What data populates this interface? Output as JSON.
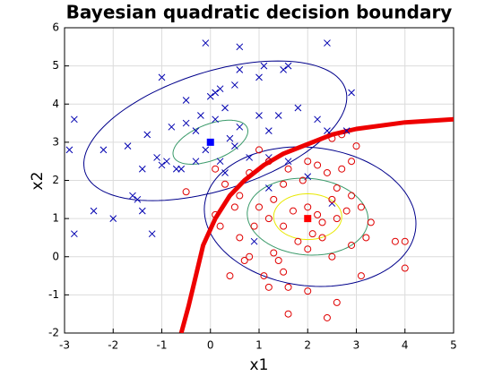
{
  "chart_data": {
    "type": "scatter",
    "title": "Bayesian quadratic decision boundary",
    "xlabel": "x1",
    "ylabel": "x2",
    "xlim": [
      -3,
      5
    ],
    "ylim": [
      -2,
      6
    ],
    "xticks": [
      -3,
      -2,
      -1,
      0,
      1,
      2,
      3,
      4,
      5
    ],
    "yticks": [
      -2,
      -1,
      0,
      1,
      2,
      3,
      4,
      5,
      6
    ],
    "grid": true,
    "series": [
      {
        "marker": "x",
        "color": "#0000b0",
        "x": [
          -2.8,
          -2.9,
          -2.8,
          -2.4,
          -2,
          -2.2,
          -1.7,
          -1.6,
          -1.5,
          -1.4,
          -1.2,
          -1.3,
          -1.1,
          -1,
          -0.9,
          -0.7,
          -0.6,
          -1,
          -0.5,
          -0.3,
          -0.2,
          0,
          0.1,
          0.2,
          0.3,
          0.1,
          -0.1,
          0.2,
          0.5,
          0.6,
          0.4,
          -0.1,
          0.6,
          0.5,
          0.6,
          1,
          1.1,
          1.5,
          1.6,
          1,
          1.2,
          1.4,
          1.2,
          0.8,
          1.8,
          2.2,
          2.4,
          2.4,
          2.8,
          2.9,
          2.5,
          1.2,
          0.9,
          1.6,
          2,
          -0.3,
          -0.8,
          -0.5,
          0.3,
          -1.4
        ],
        "y": [
          3.6,
          2.8,
          0.6,
          1.2,
          1,
          2.8,
          2.9,
          1.6,
          1.5,
          1.2,
          0.6,
          3.2,
          2.6,
          2.4,
          2.5,
          2.3,
          2.3,
          4.7,
          3.5,
          3.3,
          3.7,
          4.2,
          4.3,
          4.4,
          3.9,
          3.6,
          2.8,
          2.5,
          2.9,
          3.4,
          3.1,
          5.6,
          5.5,
          4.5,
          4.9,
          4.7,
          5,
          4.9,
          5,
          3.7,
          2.6,
          3.7,
          3.3,
          2.6,
          3.9,
          3.6,
          5.6,
          3.3,
          3.3,
          4.3,
          1.4,
          1.8,
          0.4,
          2.5,
          2.1,
          2.5,
          3.4,
          4.1,
          2.2,
          2.3
        ]
      },
      {
        "marker": "o",
        "color": "#e00000",
        "x": [
          1.6,
          2.4,
          2.6,
          2,
          1.6,
          1.2,
          1.1,
          0.4,
          1.5,
          3.1,
          4,
          0.8,
          1.3,
          2,
          2.5,
          2.9,
          3.2,
          3.8,
          4,
          0.1,
          0.5,
          0.6,
          0.9,
          1.2,
          1.5,
          1.8,
          2.1,
          2.3,
          2.6,
          2.8,
          2.9,
          3.1,
          2.5,
          2.6,
          2.4,
          2.7,
          2.9,
          3,
          2.7,
          2.5,
          2.2,
          2,
          1.9,
          1.6,
          1.2,
          1,
          0.8,
          0.6,
          0.3,
          -0.5,
          0.1,
          1.7,
          1.3,
          2,
          2.2,
          1,
          1.4,
          0.7,
          3.3,
          2.3,
          0.2,
          1.5
        ],
        "y": [
          -1.5,
          -1.6,
          -1.2,
          -0.9,
          -0.8,
          -0.8,
          -0.5,
          -0.5,
          -0.4,
          -0.5,
          -0.3,
          0,
          0.1,
          0.2,
          0,
          0.3,
          0.5,
          0.4,
          0.4,
          1.1,
          1.3,
          0.5,
          0.8,
          1,
          0.8,
          0.4,
          0.6,
          0.9,
          1,
          1.2,
          1.6,
          1.3,
          1.5,
          1.8,
          2.2,
          2.3,
          2.5,
          2.9,
          3.2,
          3.1,
          2.4,
          2.5,
          2,
          2.3,
          2.5,
          2.8,
          2.2,
          1.6,
          1.9,
          1.7,
          2.3,
          1.2,
          1.5,
          1.3,
          1.1,
          1.3,
          -0.1,
          -0.1,
          0.9,
          0.5,
          0.8,
          1.9
        ]
      },
      {
        "marker": "square",
        "color": "#0000ff",
        "x": [
          0
        ],
        "y": [
          3
        ]
      },
      {
        "marker": "square",
        "color": "#ff0000",
        "x": [
          2
        ],
        "y": [
          1
        ]
      }
    ],
    "ellipses": [
      {
        "color": "#00008b",
        "cx": 0.1,
        "cy": 3.3,
        "a": 2.9,
        "b": 1.5,
        "angle": 25
      },
      {
        "color": "#3a9a6a",
        "cx": 0,
        "cy": 3,
        "a": 0.85,
        "b": 0.45,
        "angle": 30
      },
      {
        "color": "#00008b",
        "cx": 2.05,
        "cy": 1.05,
        "a": 2.2,
        "b": 1.8,
        "angle": -15
      },
      {
        "color": "#3a9a6a",
        "cx": 2,
        "cy": 1.05,
        "a": 1.25,
        "b": 1.0,
        "angle": -10
      },
      {
        "color": "#e8e800",
        "cx": 2,
        "cy": 1.05,
        "a": 0.7,
        "b": 0.6,
        "angle": 0
      }
    ],
    "boundary": {
      "color": "#ee0000",
      "x": [
        -0.6,
        -0.45,
        -0.3,
        -0.15,
        0.1,
        0.4,
        0.7,
        1.1,
        1.5,
        2,
        2.5,
        3,
        4,
        5
      ],
      "y": [
        -2,
        -1.3,
        -0.5,
        0.3,
        1,
        1.6,
        2,
        2.4,
        2.7,
        2.95,
        3.2,
        3.35,
        3.52,
        3.6
      ]
    }
  }
}
